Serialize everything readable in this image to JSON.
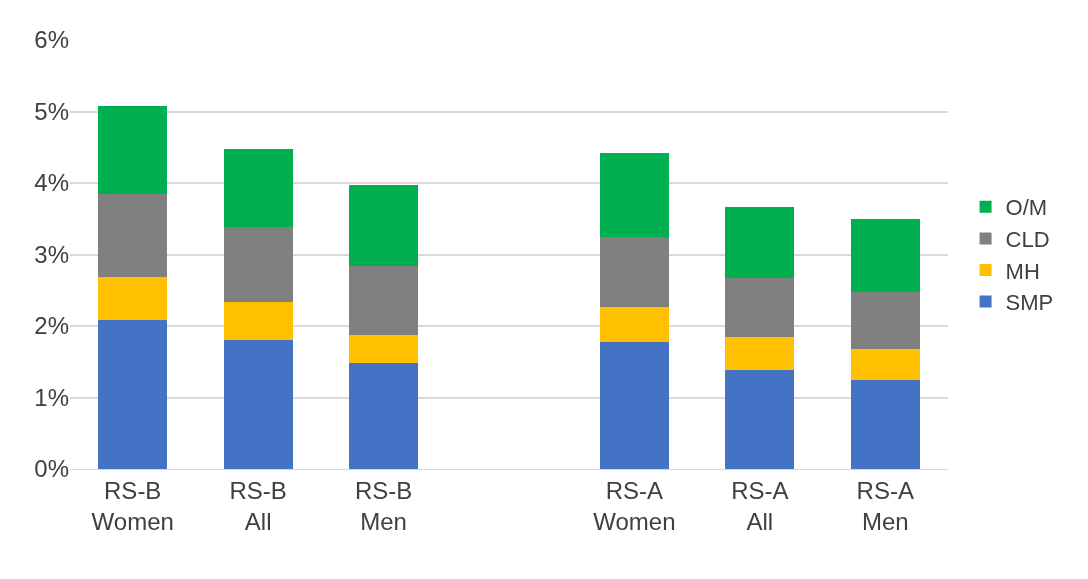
{
  "chart_data": {
    "type": "bar",
    "stacked": true,
    "categories": [
      "RS-B Women",
      "RS-B All",
      "RS-B Men",
      null,
      "RS-A Women",
      "RS-A All",
      "RS-A Men"
    ],
    "series": [
      {
        "name": "SMP",
        "color": "#4472c4",
        "values": [
          2.08,
          1.81,
          1.48,
          null,
          1.77,
          1.38,
          1.24
        ]
      },
      {
        "name": "MH",
        "color": "#ffc000",
        "values": [
          0.6,
          0.52,
          0.4,
          null,
          0.49,
          0.47,
          0.44
        ]
      },
      {
        "name": "CLD",
        "color": "#808080",
        "values": [
          1.16,
          1.05,
          0.96,
          null,
          0.99,
          0.82,
          0.79
        ]
      },
      {
        "name": "O/M",
        "color": "#00b050",
        "values": [
          1.24,
          1.1,
          1.13,
          null,
          1.17,
          0.99,
          1.02
        ]
      }
    ],
    "ylim": [
      0,
      6
    ],
    "yticks": [
      {
        "value": 0,
        "label": "0%"
      },
      {
        "value": 1,
        "label": "1%"
      },
      {
        "value": 2,
        "label": "2%"
      },
      {
        "value": 3,
        "label": "3%"
      },
      {
        "value": 4,
        "label": "4%"
      },
      {
        "value": 5,
        "label": "5%"
      },
      {
        "value": 6,
        "label": "6%"
      }
    ],
    "grid": "y",
    "legend": "right"
  }
}
